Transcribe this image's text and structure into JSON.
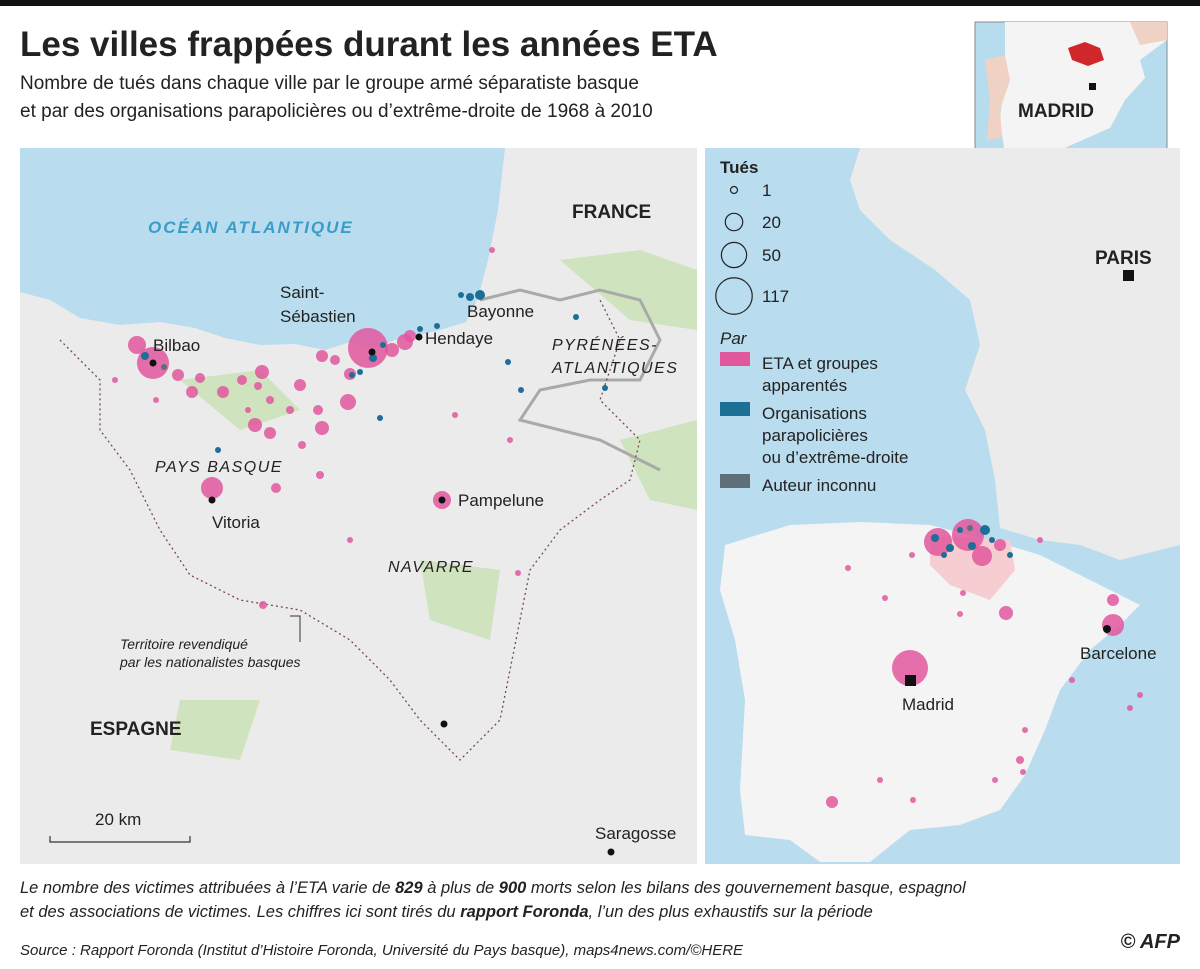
{
  "header": {
    "title": "Les villes frappées durant les années ETA",
    "subtitle": [
      "Nombre de tués dans chaque ville par le groupe armé séparatiste basque",
      "et par des organisations parapolicières ou d’extrême-droite de 1968 à 2010"
    ]
  },
  "inset": {
    "label": "MADRID"
  },
  "left_map": {
    "ocean": "OCÉAN ATLANTIQUE",
    "france": "FRANCE",
    "espagne": "ESPAGNE",
    "pays_basque": "PAYS BASQUE",
    "navarre": "NAVARRE",
    "pyrenees": [
      "PYRÉNÉES-",
      "ATLANTIQUES"
    ],
    "cities": {
      "bilbao": "Bilbao",
      "saint_sebastien": [
        "Saint-",
        "Sébastien"
      ],
      "bayonne": "Bayonne",
      "hendaye": "Hendaye",
      "vitoria": "Vitoria",
      "pampelune": "Pampelune",
      "saragosse": "Saragosse"
    },
    "territory_note": [
      "Territoire revendiqué",
      "par les nationalistes basques"
    ],
    "scale": "20 km"
  },
  "right_map": {
    "paris": "PARIS",
    "madrid": "Madrid",
    "barcelone": "Barcelone"
  },
  "legend": {
    "title": "Tués",
    "sizes": [
      1,
      20,
      50,
      117
    ],
    "by": "Par",
    "items": [
      {
        "label": [
          "ETA et groupes",
          "apparentés"
        ],
        "color": "#e0579d"
      },
      {
        "label": [
          "Organisations",
          "parapolicières",
          "ou d’extrême-droite"
        ],
        "color": "#1d6f96"
      },
      {
        "label": [
          "Auteur inconnu"
        ],
        "color": "#5e6f79"
      }
    ]
  },
  "footnote": {
    "line1": [
      "Le nombre des victimes attribuées à l’ETA varie de ",
      "829",
      " à plus de ",
      "900",
      " morts selon les bilans des gouvernement basque, espagnol"
    ],
    "line2": [
      "et des associations de victimes. Les chiffres ici sont tirés du ",
      "rapport Foronda",
      ", l’un des plus exhaustifs sur la période"
    ]
  },
  "source": "Source : Rapport Foronda (Institut d’Histoire Foronda, Université du Pays basque), maps4news.com/©HERE",
  "credit": "© AFP"
}
